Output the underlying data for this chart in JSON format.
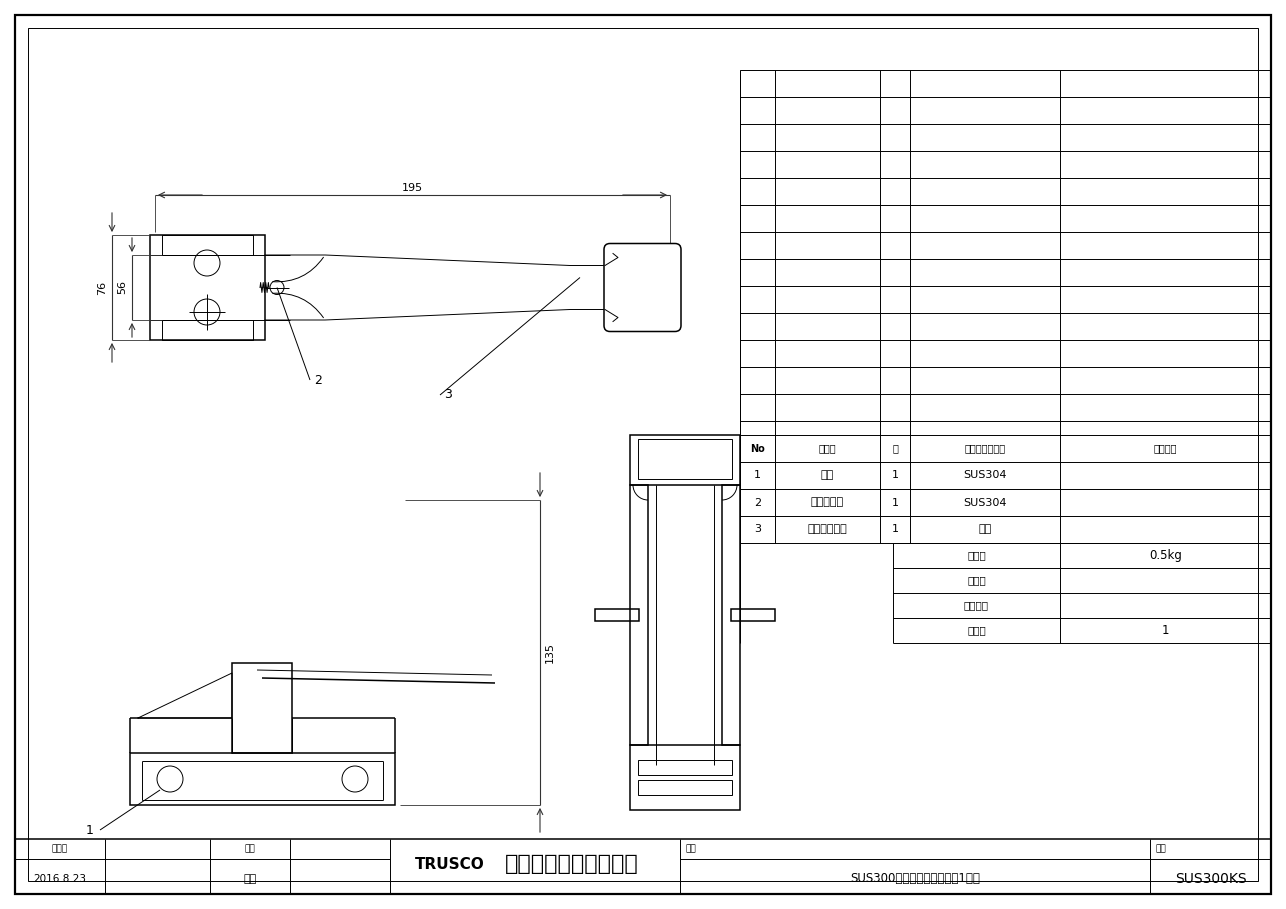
{
  "bg_color": "#ffffff",
  "lc": "#000000",
  "title_company_trusco": "TRUSCO",
  "title_company_jp": "トラスコ中山株式会社",
  "title_product": "SUS300番用足踏ストッパー1輪型",
  "title_number": "SUS300KS",
  "date_label": "作成日",
  "date_value": "2016.8.23",
  "drawing_label": "構図",
  "author": "青木",
  "weight_label": "自　重",
  "weight_value": "0.5kg",
  "size_label": "サイズ",
  "load_label": "積載荷重",
  "package_label": "捨包数",
  "package_value": "1",
  "parts": [
    {
      "no": "3",
      "name": "ペダルカバー",
      "qty": "1",
      "material": "塩ビ",
      "finish": ""
    },
    {
      "no": "2",
      "name": "引張りバネ",
      "qty": "1",
      "material": "SUS304",
      "finish": ""
    },
    {
      "no": "1",
      "name": "本体",
      "qty": "1",
      "material": "SUS304",
      "finish": ""
    },
    {
      "no": "No",
      "name": "部品名",
      "qty": "数",
      "material": "材質、厚／品番",
      "finish": "表面処理"
    }
  ],
  "dim_195": "195",
  "dim_76": "76",
  "dim_56": "56",
  "dim_135": "135",
  "label_1": "1",
  "label_2": "2",
  "label_3": "3",
  "hinmei_label": "品名",
  "hinban_label": "品番"
}
